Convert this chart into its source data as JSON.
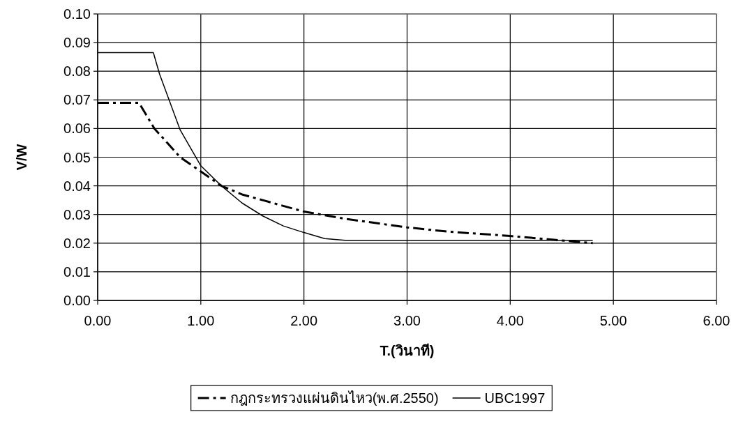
{
  "chart_data": {
    "type": "line",
    "xlabel": "T.(วินาที)",
    "ylabel": "V/W",
    "xlim": [
      0,
      6
    ],
    "ylim": [
      0,
      0.1
    ],
    "xticks": [
      {
        "value": 0,
        "label": "0.00"
      },
      {
        "value": 1,
        "label": "1.00"
      },
      {
        "value": 2,
        "label": "2.00"
      },
      {
        "value": 3,
        "label": "3.00"
      },
      {
        "value": 4,
        "label": "4.00"
      },
      {
        "value": 5,
        "label": "5.00"
      },
      {
        "value": 6,
        "label": "6.00"
      }
    ],
    "yticks": [
      {
        "value": 0,
        "label": "0.00"
      },
      {
        "value": 0.01,
        "label": "0.01"
      },
      {
        "value": 0.02,
        "label": "0.02"
      },
      {
        "value": 0.03,
        "label": "0.03"
      },
      {
        "value": 0.04,
        "label": "0.04"
      },
      {
        "value": 0.05,
        "label": "0.05"
      },
      {
        "value": 0.06,
        "label": "0.06"
      },
      {
        "value": 0.07,
        "label": "0.07"
      },
      {
        "value": 0.08,
        "label": "0.08"
      },
      {
        "value": 0.09,
        "label": "0.09"
      },
      {
        "value": 0.1,
        "label": "0.10"
      }
    ],
    "grid": true,
    "legend": "bottom",
    "marker": "none",
    "series": [
      {
        "name": "กฎกระทรวงแผ่นดินไหว(พ.ศ.2550)",
        "color": "#000000",
        "line_style": "dashed",
        "x": [
          0,
          0.4,
          0.55,
          0.8,
          1.0,
          1.2,
          1.4,
          1.6,
          2.0,
          2.4,
          3.0,
          3.4,
          4.0,
          4.8
        ],
        "values": [
          0.069,
          0.069,
          0.06,
          0.05,
          0.045,
          0.04,
          0.037,
          0.035,
          0.031,
          0.0285,
          0.0255,
          0.024,
          0.0225,
          0.02
        ]
      },
      {
        "name": "UBC1997",
        "color": "#000000",
        "line_style": "solid",
        "x": [
          0,
          0.54,
          0.6,
          0.8,
          1.0,
          1.2,
          1.4,
          1.6,
          1.8,
          2.0,
          2.2,
          2.4,
          4.8
        ],
        "values": [
          0.0865,
          0.0865,
          0.079,
          0.0595,
          0.047,
          0.04,
          0.034,
          0.0295,
          0.026,
          0.0237,
          0.0216,
          0.021,
          0.021
        ]
      }
    ]
  }
}
